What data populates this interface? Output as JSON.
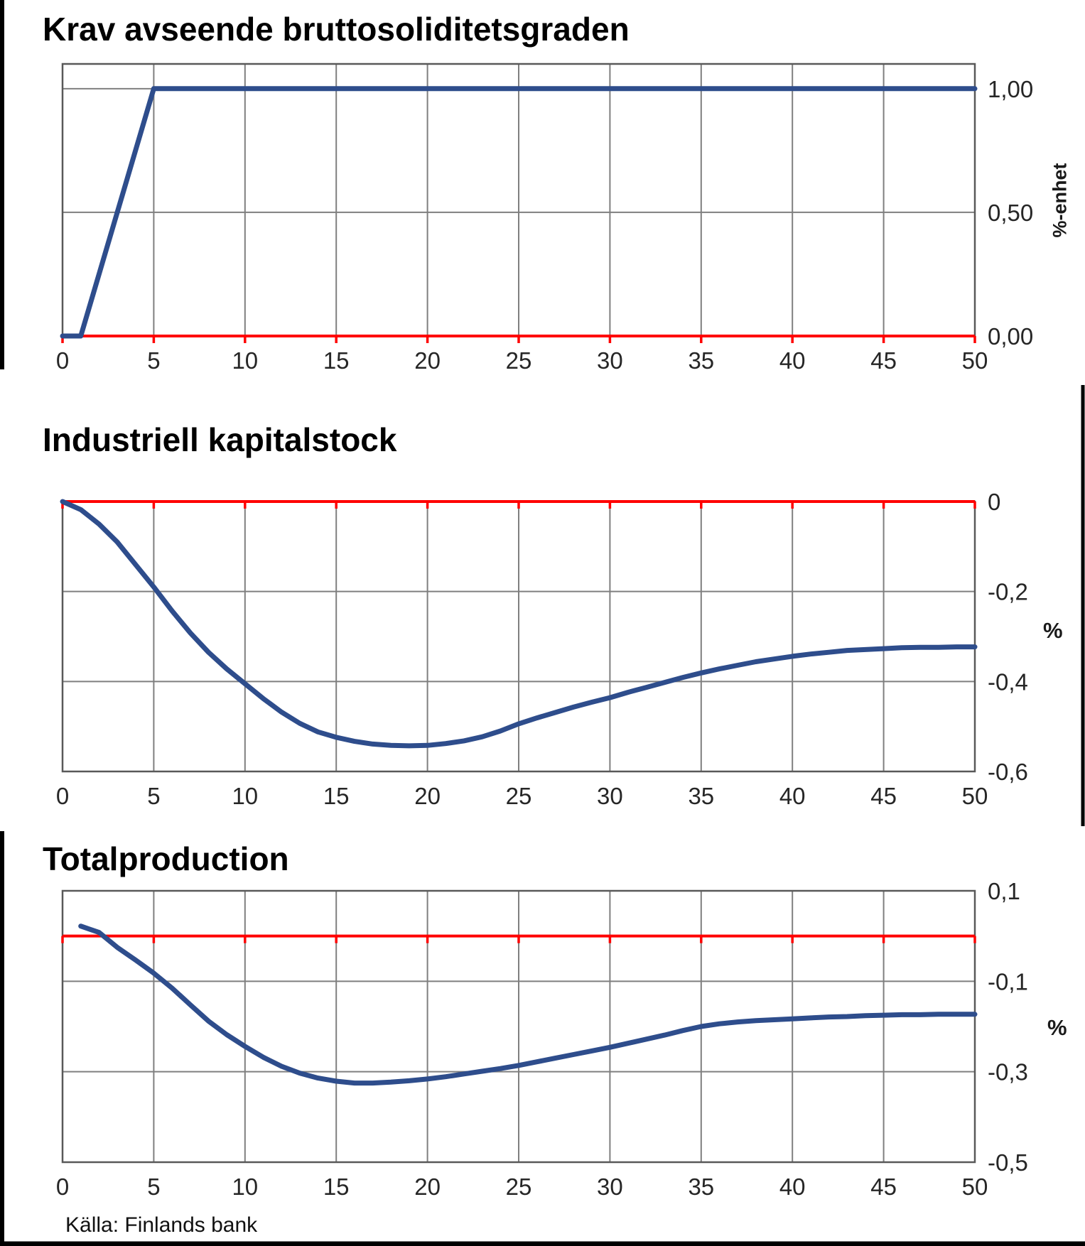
{
  "page": {
    "background": "#ffffff"
  },
  "source_label": "Källa: Finlands bank",
  "colors": {
    "series": "#2e4d8c",
    "zero_line": "#ff0000",
    "grid": "#7f7f7f",
    "plot_border": "#595959",
    "tick_text": "#262626",
    "title_text": "#000000",
    "frame": "#000000"
  },
  "chart_data": [
    {
      "type": "line",
      "title": "Krav avseende bruttosoliditetsgraden",
      "ylabel": "%-enhet",
      "ylabel_rotated": true,
      "xlim": [
        0,
        50
      ],
      "ylim": [
        0,
        1.1
      ],
      "x_ticks": [
        0,
        5,
        10,
        15,
        20,
        25,
        30,
        35,
        40,
        45,
        50
      ],
      "x_tick_labels": [
        "0",
        "5",
        "10",
        "15",
        "20",
        "25",
        "30",
        "35",
        "40",
        "45",
        "50"
      ],
      "y_ticks": [
        {
          "value": 1.0,
          "label": "1,00"
        },
        {
          "value": 0.5,
          "label": "0,50"
        },
        {
          "value": 0.0,
          "label": "0,00"
        }
      ],
      "y_gridlines": [
        1.0,
        0.5
      ],
      "zero_line_value": 0.0,
      "grid": true,
      "legend": null,
      "series": [
        {
          "name": "krav",
          "points": [
            [
              0,
              0
            ],
            [
              1,
              0
            ],
            [
              5,
              1
            ],
            [
              50,
              1
            ]
          ]
        }
      ]
    },
    {
      "type": "line",
      "title": "Industriell kapitalstock",
      "ylabel": "%",
      "ylabel_rotated": false,
      "xlim": [
        0,
        50
      ],
      "ylim": [
        -0.6,
        0
      ],
      "x_ticks": [
        0,
        5,
        10,
        15,
        20,
        25,
        30,
        35,
        40,
        45,
        50
      ],
      "x_tick_labels": [
        "0",
        "5",
        "10",
        "15",
        "20",
        "25",
        "30",
        "35",
        "40",
        "45",
        "50"
      ],
      "y_ticks": [
        {
          "value": 0.0,
          "label": "0"
        },
        {
          "value": -0.2,
          "label": "-0,2"
        },
        {
          "value": -0.4,
          "label": "-0,4"
        },
        {
          "value": -0.6,
          "label": "-0,6"
        }
      ],
      "y_gridlines": [
        -0.2,
        -0.4
      ],
      "zero_line_value": 0.0,
      "grid": true,
      "legend": null,
      "series": [
        {
          "name": "kapitalstock",
          "points": [
            [
              0,
              0
            ],
            [
              1,
              -0.018
            ],
            [
              2,
              -0.05
            ],
            [
              3,
              -0.09
            ],
            [
              4,
              -0.14
            ],
            [
              5,
              -0.19
            ],
            [
              6,
              -0.243
            ],
            [
              7,
              -0.292
            ],
            [
              8,
              -0.335
            ],
            [
              9,
              -0.372
            ],
            [
              10,
              -0.405
            ],
            [
              11,
              -0.438
            ],
            [
              12,
              -0.468
            ],
            [
              13,
              -0.493
            ],
            [
              14,
              -0.512
            ],
            [
              15,
              -0.524
            ],
            [
              16,
              -0.533
            ],
            [
              17,
              -0.539
            ],
            [
              18,
              -0.542
            ],
            [
              19,
              -0.543
            ],
            [
              20,
              -0.542
            ],
            [
              21,
              -0.538
            ],
            [
              22,
              -0.532
            ],
            [
              23,
              -0.523
            ],
            [
              24,
              -0.51
            ],
            [
              25,
              -0.494
            ],
            [
              26,
              -0.481
            ],
            [
              27,
              -0.469
            ],
            [
              28,
              -0.457
            ],
            [
              29,
              -0.446
            ],
            [
              30,
              -0.436
            ],
            [
              31,
              -0.424
            ],
            [
              32,
              -0.413
            ],
            [
              33,
              -0.402
            ],
            [
              34,
              -0.391
            ],
            [
              35,
              -0.381
            ],
            [
              36,
              -0.372
            ],
            [
              37,
              -0.364
            ],
            [
              38,
              -0.356
            ],
            [
              39,
              -0.35
            ],
            [
              40,
              -0.344
            ],
            [
              41,
              -0.339
            ],
            [
              42,
              -0.335
            ],
            [
              43,
              -0.331
            ],
            [
              44,
              -0.329
            ],
            [
              45,
              -0.327
            ],
            [
              46,
              -0.325
            ],
            [
              47,
              -0.324
            ],
            [
              48,
              -0.324
            ],
            [
              49,
              -0.323
            ],
            [
              50,
              -0.323
            ]
          ]
        }
      ]
    },
    {
      "type": "line",
      "title": "Totalproduction",
      "ylabel": "%",
      "ylabel_rotated": false,
      "xlim": [
        0,
        50
      ],
      "ylim": [
        -0.5,
        0.1
      ],
      "x_ticks": [
        0,
        5,
        10,
        15,
        20,
        25,
        30,
        35,
        40,
        45,
        50
      ],
      "x_tick_labels": [
        "0",
        "5",
        "10",
        "15",
        "20",
        "25",
        "30",
        "35",
        "40",
        "45",
        "50"
      ],
      "y_ticks": [
        {
          "value": 0.1,
          "label": "0,1"
        },
        {
          "value": -0.1,
          "label": "-0,1"
        },
        {
          "value": -0.3,
          "label": "-0,3"
        },
        {
          "value": -0.5,
          "label": "-0,5"
        }
      ],
      "y_gridlines": [
        -0.1,
        -0.3
      ],
      "zero_line_value": 0.0,
      "grid": true,
      "legend": null,
      "series": [
        {
          "name": "totalproduction",
          "points": [
            [
              1,
              0.022
            ],
            [
              2,
              0.008
            ],
            [
              3,
              -0.025
            ],
            [
              4,
              -0.053
            ],
            [
              5,
              -0.082
            ],
            [
              6,
              -0.115
            ],
            [
              7,
              -0.152
            ],
            [
              8,
              -0.188
            ],
            [
              9,
              -0.218
            ],
            [
              10,
              -0.244
            ],
            [
              11,
              -0.268
            ],
            [
              12,
              -0.288
            ],
            [
              13,
              -0.303
            ],
            [
              14,
              -0.314
            ],
            [
              15,
              -0.321
            ],
            [
              16,
              -0.325
            ],
            [
              17,
              -0.325
            ],
            [
              18,
              -0.323
            ],
            [
              19,
              -0.32
            ],
            [
              20,
              -0.316
            ],
            [
              21,
              -0.311
            ],
            [
              22,
              -0.305
            ],
            [
              23,
              -0.299
            ],
            [
              24,
              -0.293
            ],
            [
              25,
              -0.286
            ],
            [
              26,
              -0.278
            ],
            [
              27,
              -0.27
            ],
            [
              28,
              -0.262
            ],
            [
              29,
              -0.254
            ],
            [
              30,
              -0.246
            ],
            [
              31,
              -0.237
            ],
            [
              32,
              -0.228
            ],
            [
              33,
              -0.219
            ],
            [
              34,
              -0.209
            ],
            [
              35,
              -0.2
            ],
            [
              36,
              -0.194
            ],
            [
              37,
              -0.19
            ],
            [
              38,
              -0.187
            ],
            [
              39,
              -0.185
            ],
            [
              40,
              -0.183
            ],
            [
              41,
              -0.181
            ],
            [
              42,
              -0.179
            ],
            [
              43,
              -0.178
            ],
            [
              44,
              -0.176
            ],
            [
              45,
              -0.175
            ],
            [
              46,
              -0.174
            ],
            [
              47,
              -0.174
            ],
            [
              48,
              -0.173
            ],
            [
              49,
              -0.173
            ],
            [
              50,
              -0.173
            ]
          ]
        }
      ]
    }
  ]
}
